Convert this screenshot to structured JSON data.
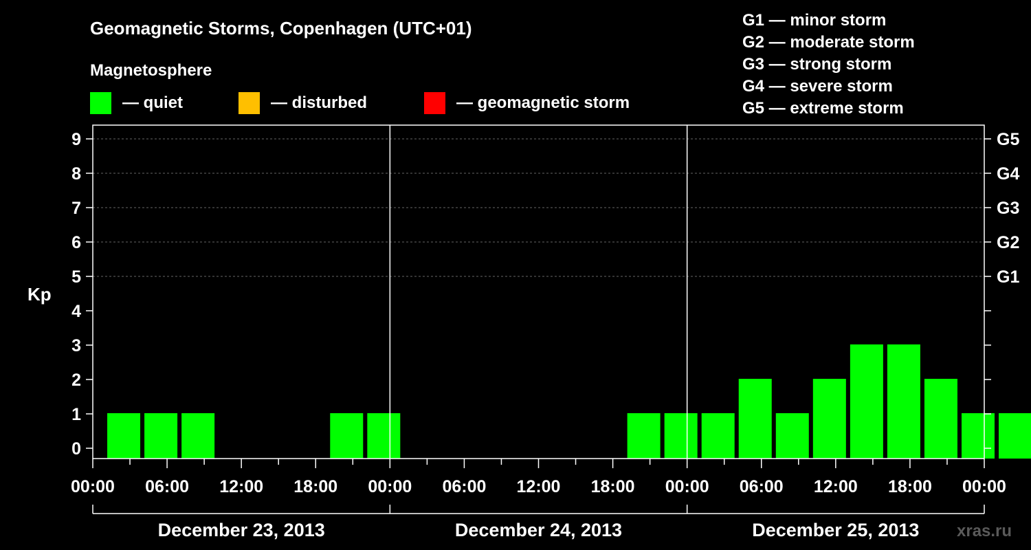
{
  "title": "Geomagnetic Storms, Copenhagen (UTC+01)",
  "legend": {
    "heading": "Magnetosphere",
    "items": [
      {
        "label": "— quiet",
        "color": "#00ff00"
      },
      {
        "label": "— disturbed",
        "color": "#ffbf00"
      },
      {
        "label": "— geomagnetic storm",
        "color": "#ff0000"
      }
    ]
  },
  "storm_scale": [
    "G1 — minor storm",
    "G2 — moderate storm",
    "G3 — strong storm",
    "G4 — severe storm",
    "G5 — extreme storm"
  ],
  "watermark": "xras.ru",
  "chart_data": {
    "type": "bar",
    "ylabel": "Kp",
    "ylim": [
      0,
      9
    ],
    "yticks": [
      "0",
      "1",
      "2",
      "3",
      "4",
      "5",
      "6",
      "7",
      "8",
      "9"
    ],
    "right_ticks": [
      {
        "value": 5,
        "label": "G1"
      },
      {
        "value": 6,
        "label": "G2"
      },
      {
        "value": 7,
        "label": "G3"
      },
      {
        "value": 8,
        "label": "G4"
      },
      {
        "value": 9,
        "label": "G5"
      }
    ],
    "grid_lines": [
      5,
      6,
      7,
      8,
      9
    ],
    "x_tick_labels": [
      "00:00",
      "06:00",
      "12:00",
      "18:00",
      "00:00",
      "06:00",
      "12:00",
      "18:00",
      "00:00",
      "06:00",
      "12:00",
      "18:00",
      "00:00"
    ],
    "days": [
      "December 23, 2013",
      "December 24, 2013",
      "December 25, 2013"
    ],
    "interval_hours": 3,
    "start_hour_offset": 1,
    "values": [
      1,
      1,
      1,
      0,
      0,
      0,
      1,
      1,
      0,
      0,
      0,
      0,
      0,
      0,
      1,
      1,
      1,
      2,
      1,
      2,
      3,
      3,
      2,
      1,
      1
    ],
    "colors": {
      "quiet": "#00ff00",
      "disturbed": "#ffbf00",
      "storm": "#ff0000"
    }
  }
}
